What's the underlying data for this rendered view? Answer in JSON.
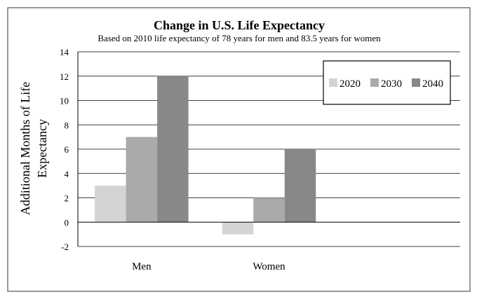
{
  "chart_data": {
    "type": "bar",
    "title": "Change in U.S. Life Expectancy",
    "subtitle": "Based on 2010 life expectancy of 78 years for men and 83.5 years for women",
    "ylabel_lines": [
      "Additional Months of Life",
      "Expectancy"
    ],
    "xlabel": "",
    "categories": [
      "Men",
      "Women"
    ],
    "series": [
      {
        "name": "2020",
        "values": [
          3,
          -1
        ],
        "color": "#d4d4d4"
      },
      {
        "name": "2030",
        "values": [
          7,
          2
        ],
        "color": "#aaaaaa"
      },
      {
        "name": "2040",
        "values": [
          12,
          6
        ],
        "color": "#888888"
      }
    ],
    "ylim": [
      -2,
      14
    ],
    "yticks": [
      -2,
      0,
      2,
      4,
      6,
      8,
      10,
      12,
      14
    ],
    "grid": true,
    "legend": "top-right"
  }
}
